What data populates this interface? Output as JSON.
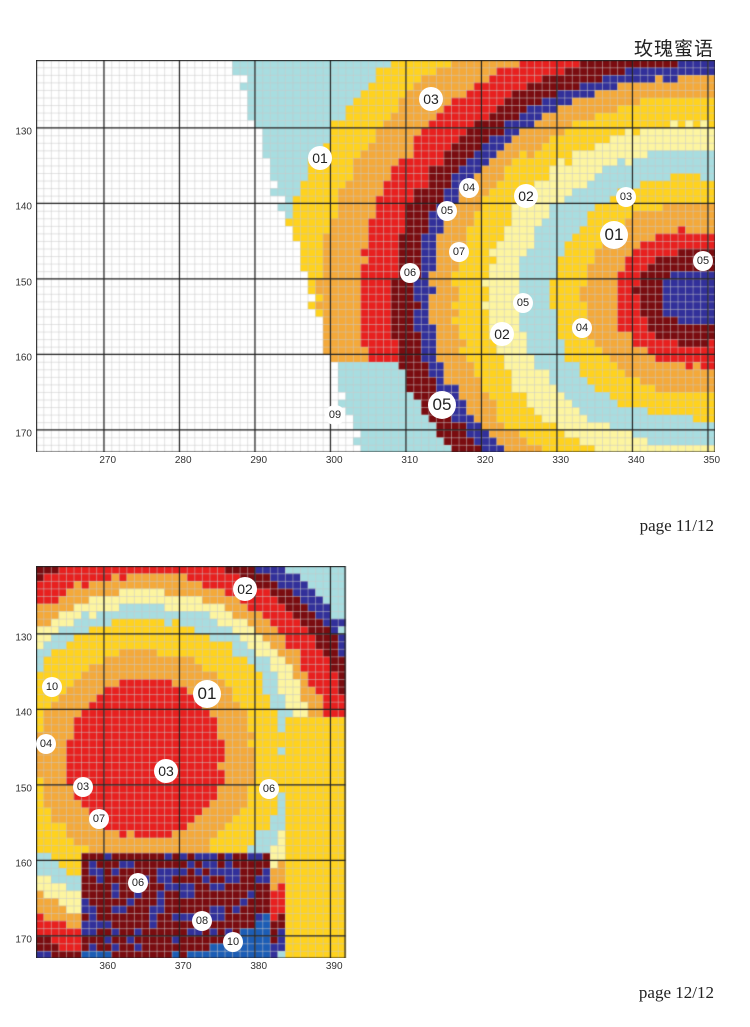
{
  "title": "玫瑰蜜语",
  "pages": [
    {
      "label": "page 11/12",
      "x_ticks": [
        "270",
        "280",
        "290",
        "300",
        "310",
        "320",
        "330",
        "340",
        "350"
      ],
      "y_ticks": [
        "130",
        "140",
        "150",
        "160",
        "170"
      ],
      "markers": [
        {
          "text": "03",
          "size": "m"
        },
        {
          "text": "01",
          "size": "m"
        },
        {
          "text": "04",
          "size": "s"
        },
        {
          "text": "02",
          "size": "m"
        },
        {
          "text": "03",
          "size": "s"
        },
        {
          "text": "05",
          "size": "s"
        },
        {
          "text": "01",
          "size": "l"
        },
        {
          "text": "07",
          "size": "s"
        },
        {
          "text": "05",
          "size": "s"
        },
        {
          "text": "06",
          "size": "s"
        },
        {
          "text": "05",
          "size": "s"
        },
        {
          "text": "04",
          "size": "s"
        },
        {
          "text": "02",
          "size": "m"
        },
        {
          "text": "05",
          "size": "l"
        },
        {
          "text": "09",
          "size": "s"
        }
      ]
    },
    {
      "label": "page 12/12",
      "x_ticks": [
        "360",
        "370",
        "380",
        "390"
      ],
      "y_ticks": [
        "130",
        "140",
        "150",
        "160",
        "170"
      ],
      "markers": [
        {
          "text": "02",
          "size": "m"
        },
        {
          "text": "10",
          "size": "s"
        },
        {
          "text": "01",
          "size": "l"
        },
        {
          "text": "04",
          "size": "s"
        },
        {
          "text": "03",
          "size": "m"
        },
        {
          "text": "03",
          "size": "s"
        },
        {
          "text": "06",
          "size": "s"
        },
        {
          "text": "07",
          "size": "s"
        },
        {
          "text": "06",
          "size": "s"
        },
        {
          "text": "08",
          "size": "s"
        },
        {
          "text": "10",
          "size": "s"
        }
      ]
    }
  ],
  "palette": {
    "white": "#ffffff",
    "lavender": "#c9a8d4",
    "light_cyan": "#a8dde0",
    "cream": "#fdf5a0",
    "yellow": "#ffd21e",
    "orange": "#f4a93a",
    "red": "#e8201f",
    "dark_red": "#7a0c10",
    "navy": "#32309a",
    "blue": "#1c5db5",
    "grid_fine": "#c7c7c7",
    "grid_major": "#222222"
  }
}
